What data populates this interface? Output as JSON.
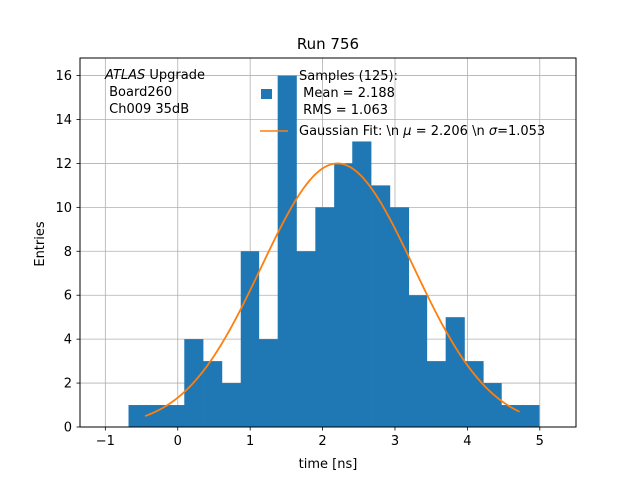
{
  "chart_data": {
    "type": "bar",
    "title": "Run 756",
    "xlabel": "time [ns]",
    "ylabel": "Entries",
    "xlim": [
      -1.35,
      5.5
    ],
    "ylim": [
      0,
      16.8
    ],
    "x_ticks": [
      -1,
      0,
      1,
      2,
      3,
      4,
      5
    ],
    "y_ticks": [
      0,
      2,
      4,
      6,
      8,
      10,
      12,
      14,
      16
    ],
    "grid": true,
    "annotation": [
      "ATLAS Upgrade",
      " Board260",
      " Ch009 35dB"
    ],
    "annotation_italic_word": "ATLAS",
    "annotation_rest": " Upgrade",
    "histogram": {
      "name": "Samples (125):\n Mean = 2.188\n RMS = 1.063",
      "label_lines": [
        "Samples (125):",
        " Mean = 2.188",
        " RMS = 1.063"
      ],
      "color": "#1f77b4",
      "bin_edges": [
        -0.68,
        -0.42,
        -0.16,
        0.09,
        0.35,
        0.61,
        0.87,
        1.12,
        1.38,
        1.64,
        1.9,
        2.16,
        2.41,
        2.67,
        2.93,
        3.19,
        3.44,
        3.7,
        3.96,
        4.22,
        4.47,
        4.73,
        4.99
      ],
      "counts": [
        1,
        1,
        1,
        4,
        3,
        2,
        8,
        4,
        16,
        8,
        10,
        12,
        13,
        11,
        10,
        6,
        3,
        5,
        3,
        2,
        1,
        1
      ]
    },
    "series": [
      {
        "name": "Gaussian Fit: \\n $\\mu$ = 2.206 \\n $\\sigma$=1.053",
        "label_prefix": "Gaussian Fit: \\n ",
        "label_mu": "μ",
        "label_mid": " = 2.206 \\n ",
        "label_sigma": "σ",
        "label_suffix": "=1.053",
        "color": "#ff7f0e",
        "amplitude": 12.0,
        "mu": 2.206,
        "sigma": 1.053,
        "x_range": [
          -0.45,
          4.72
        ]
      }
    ],
    "legend_position": "top-right"
  }
}
